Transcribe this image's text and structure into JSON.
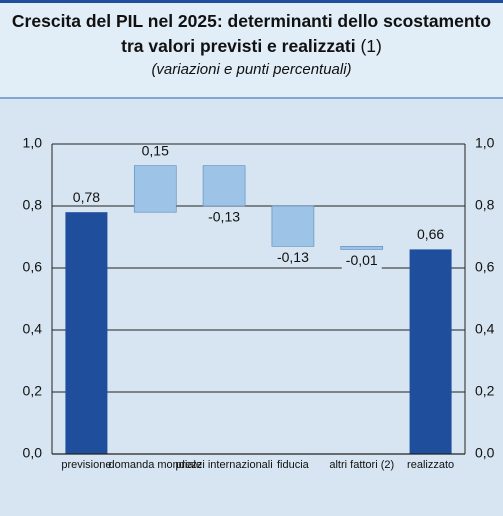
{
  "chart_data": {
    "type": "waterfall",
    "title": "Crescita del PIL nel 2025: determinanti dello scostamento tra valori previsti e realizzati",
    "title_note": "(1)",
    "subtitle": "(variazioni e punti percentuali)",
    "categories": [
      "previsione",
      "domanda mondiale",
      "prezzi internazionali",
      "fiducia",
      "altri fattori (2)",
      "realizzato"
    ],
    "values": [
      0.78,
      0.15,
      -0.13,
      -0.13,
      -0.01,
      0.66
    ],
    "value_labels": [
      "0,78",
      "0,15",
      "-0,13",
      "-0,13",
      "-0,01",
      "0,66"
    ],
    "totals": [
      true,
      false,
      false,
      false,
      false,
      true
    ],
    "total_color": "#1f4e9c",
    "change_color": "#9dc3e6",
    "ylim": [
      0,
      1.0
    ],
    "yticks": [
      {
        "value": 0,
        "label": "0,0"
      },
      {
        "value": 0.2,
        "label": "0,2"
      },
      {
        "value": 0.4,
        "label": "0,4"
      },
      {
        "value": 0.6,
        "label": "0,6"
      },
      {
        "value": 0.8,
        "label": "0,8"
      },
      {
        "value": 1.0,
        "label": "1,0"
      }
    ],
    "grid": true
  }
}
